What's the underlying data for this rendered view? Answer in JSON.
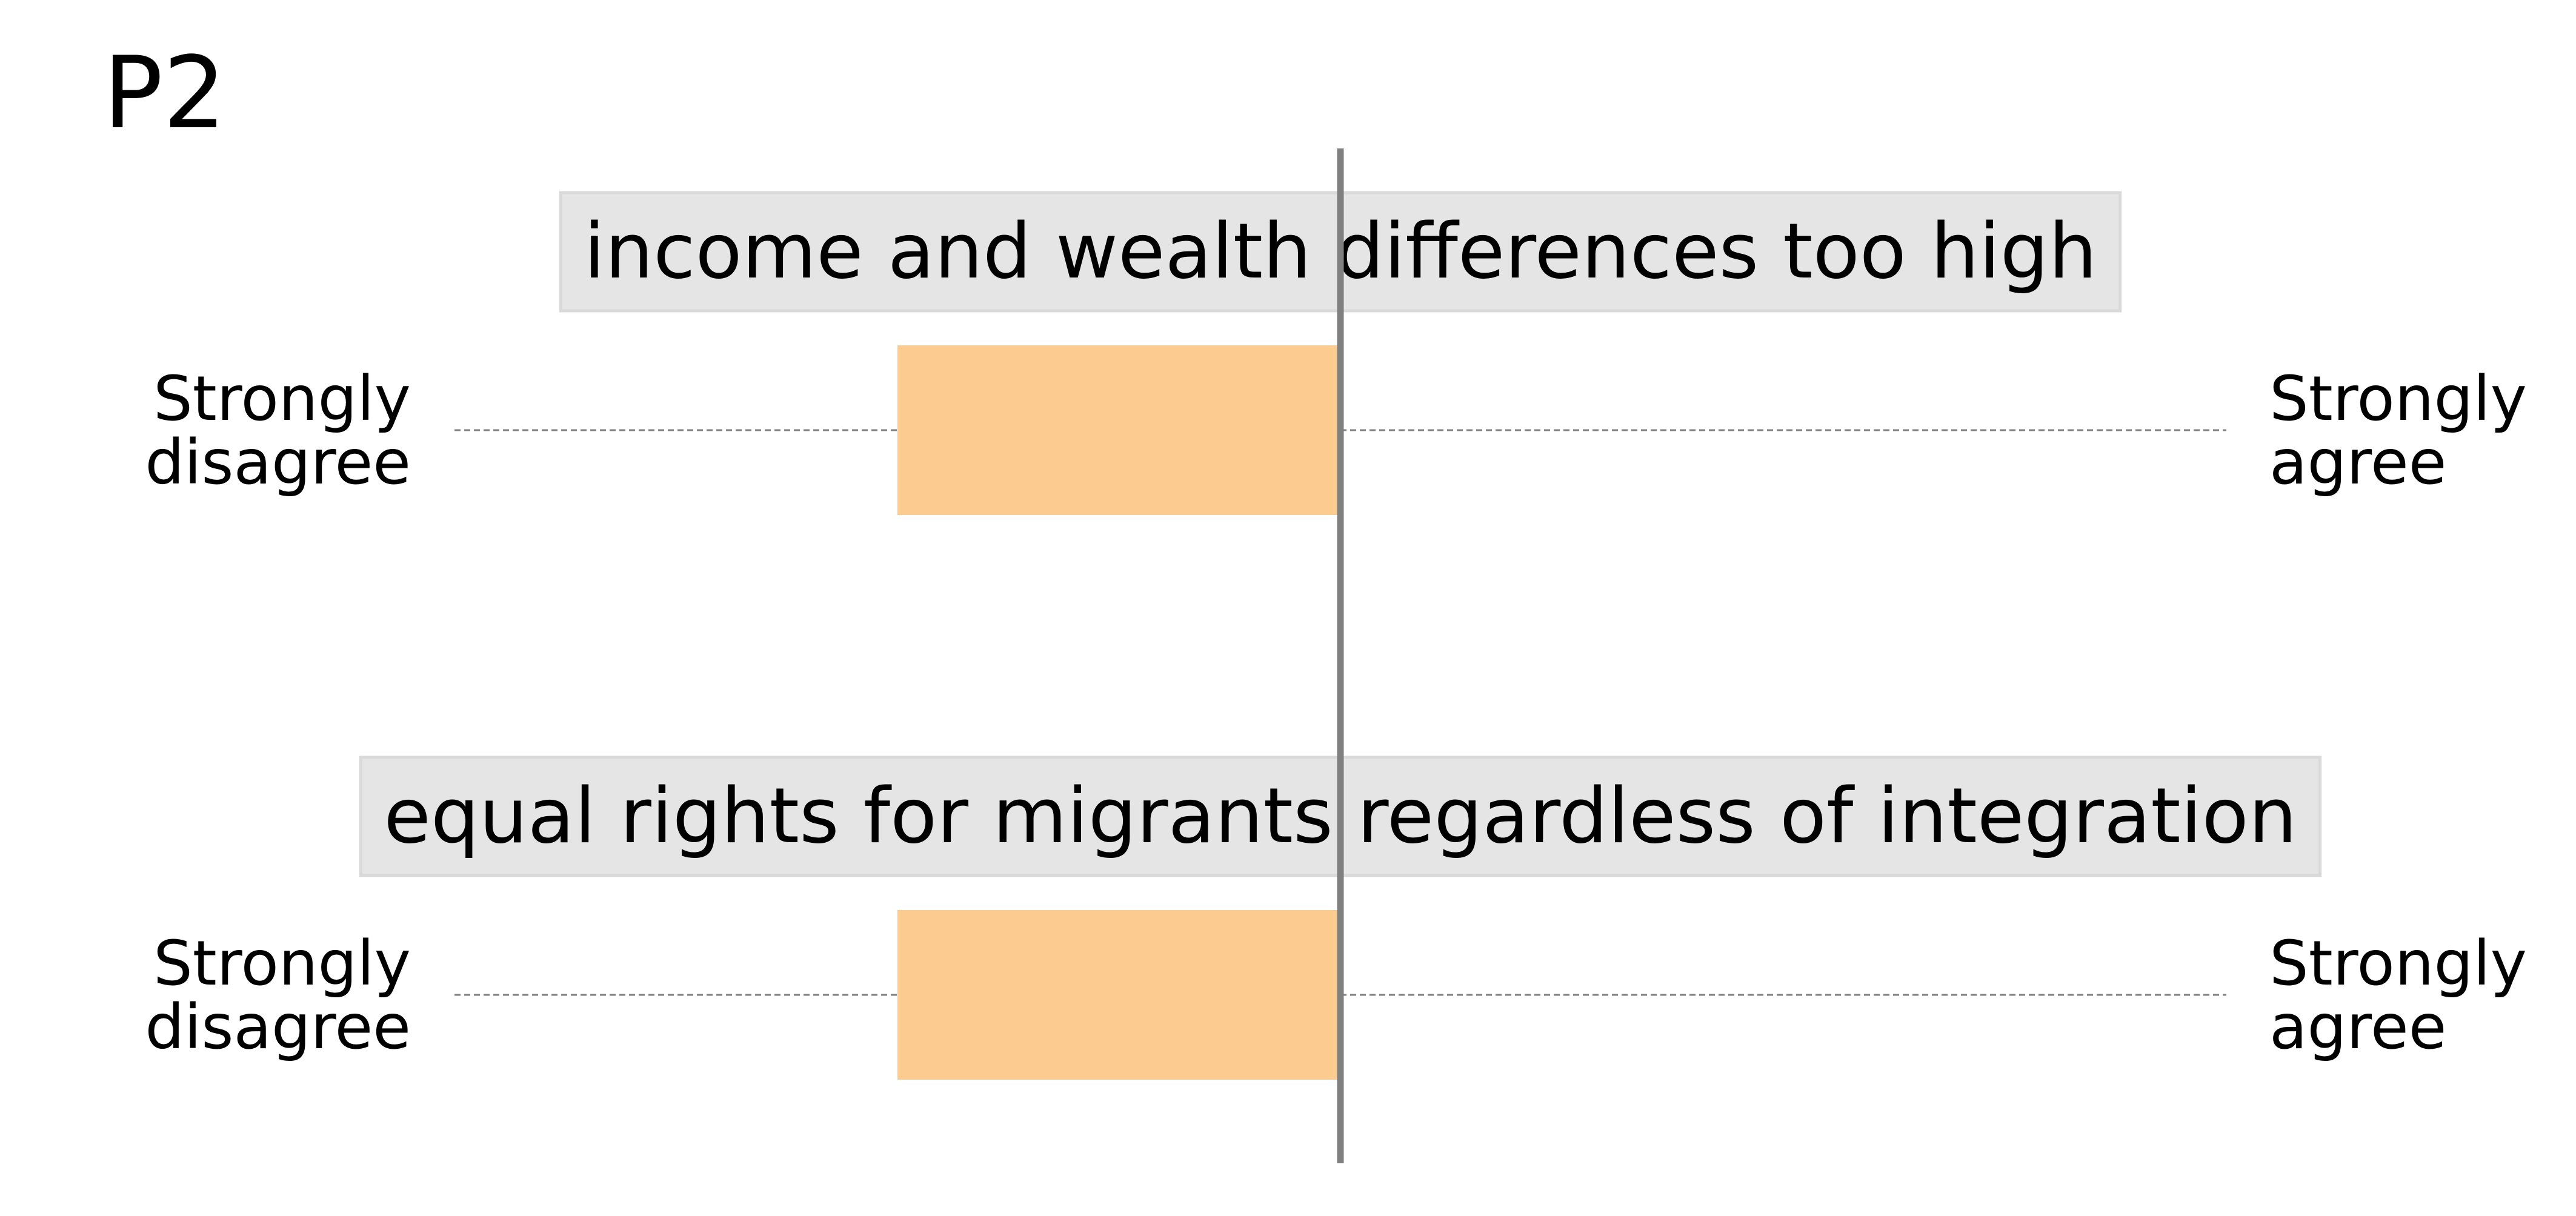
{
  "panel_label": "P2",
  "colors": {
    "bar": "#fccb8f",
    "label_box": "#e5e5e5",
    "center_line": "#808080",
    "dash_line": "#808080"
  },
  "chart_data": {
    "type": "bar",
    "orientation": "horizontal",
    "title": "P2",
    "xlim": [
      -1,
      1
    ],
    "center": 0,
    "rows": [
      {
        "statement": "income and wealth differences too high",
        "left_label": [
          "Strongly",
          "disagree"
        ],
        "right_label": [
          "Strongly",
          "agree"
        ],
        "value": -0.5
      },
      {
        "statement": "equal rights for migrants regardless of integration",
        "left_label": [
          "Strongly",
          "disagree"
        ],
        "right_label": [
          "Strongly",
          "agree"
        ],
        "value": -0.5
      }
    ]
  }
}
